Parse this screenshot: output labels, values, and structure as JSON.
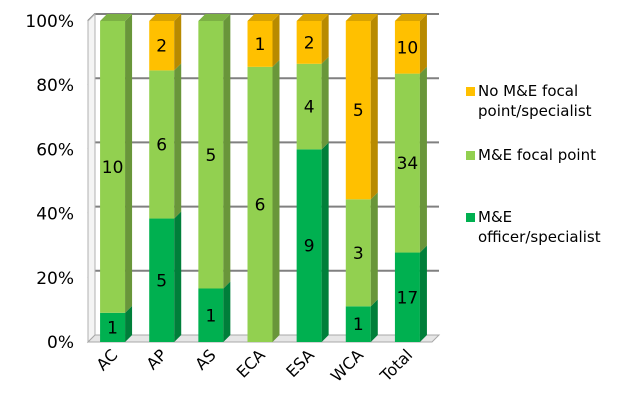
{
  "chart_data": {
    "type": "bar",
    "stacked": true,
    "percent_stacked": true,
    "title": "",
    "xlabel": "",
    "ylabel": "",
    "ylim": [
      0,
      100
    ],
    "yticks": [
      "0%",
      "20%",
      "40%",
      "60%",
      "80%",
      "100%"
    ],
    "categories": [
      "AC",
      "AP",
      "AS",
      "ECA",
      "ESA",
      "WCA",
      "Total"
    ],
    "series": [
      {
        "name": "M&E officer/specialist",
        "color": "#00B050",
        "values": [
          1,
          5,
          1,
          0,
          9,
          1,
          17
        ]
      },
      {
        "name": "M&E focal point",
        "color": "#92D050",
        "values": [
          10,
          6,
          5,
          6,
          4,
          3,
          34
        ]
      },
      {
        "name": "No M&E focal point/specialist",
        "color": "#FFC000",
        "values": [
          0,
          2,
          0,
          1,
          2,
          5,
          10
        ]
      }
    ],
    "legend": {
      "position": "right",
      "entries": [
        {
          "lines": [
            "No M&E focal",
            "point/specialist"
          ],
          "color": "#FFC000"
        },
        {
          "lines": [
            "M&E focal point"
          ],
          "color": "#92D050"
        },
        {
          "lines": [
            "M&E",
            "officer/specialist"
          ],
          "color": "#00B050"
        }
      ]
    },
    "grid": true
  }
}
